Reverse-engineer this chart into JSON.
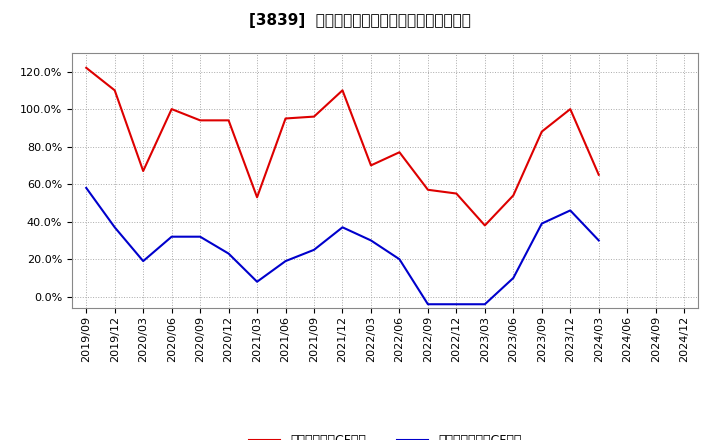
{
  "title": "[3839]  流動負債キャッシュフロー比率の推移",
  "x_labels": [
    "2019/09",
    "2019/12",
    "2020/03",
    "2020/06",
    "2020/09",
    "2020/12",
    "2021/03",
    "2021/06",
    "2021/09",
    "2021/12",
    "2022/03",
    "2022/06",
    "2022/09",
    "2022/12",
    "2023/03",
    "2023/06",
    "2023/09",
    "2023/12",
    "2024/03",
    "2024/06",
    "2024/09",
    "2024/12"
  ],
  "red_values": [
    1.22,
    1.1,
    0.67,
    1.0,
    0.94,
    0.94,
    0.53,
    0.95,
    0.96,
    1.1,
    0.7,
    0.77,
    0.57,
    0.55,
    0.38,
    0.54,
    0.88,
    1.0,
    0.65,
    null,
    null,
    null
  ],
  "blue_values": [
    0.58,
    0.37,
    0.19,
    0.32,
    0.32,
    0.23,
    0.08,
    0.19,
    0.25,
    0.37,
    0.3,
    0.2,
    -0.04,
    -0.04,
    -0.04,
    0.1,
    0.39,
    0.46,
    0.3,
    null,
    null,
    null
  ],
  "red_label": "流動負債営業CF比率",
  "blue_label": "流動負債フリーCF比率",
  "red_color": "#dd0000",
  "blue_color": "#0000cc",
  "ylim_min": -0.06,
  "ylim_max": 1.3,
  "yticks": [
    0.0,
    0.2,
    0.4,
    0.6,
    0.8,
    1.0,
    1.2
  ],
  "background_color": "#ffffff",
  "grid_color": "#aaaaaa",
  "title_fontsize": 11,
  "tick_fontsize": 8,
  "legend_fontsize": 9
}
